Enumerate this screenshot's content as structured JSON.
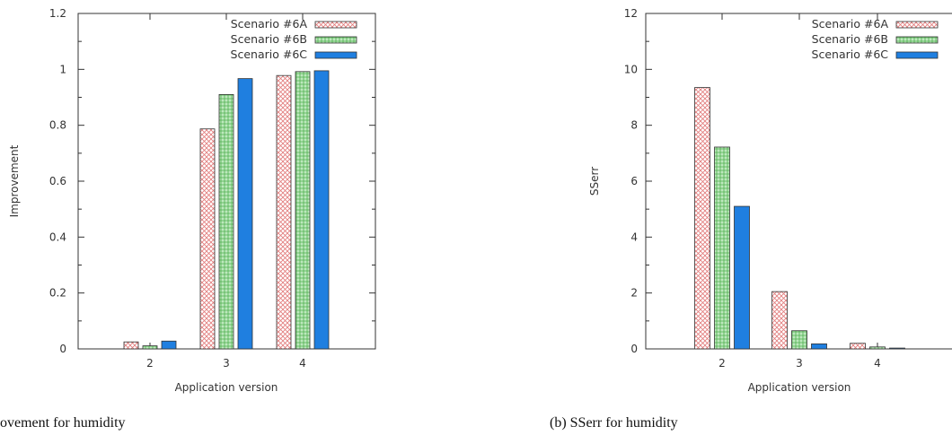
{
  "chart_data": [
    {
      "type": "bar",
      "categories": [
        "2",
        "3",
        "4"
      ],
      "series": [
        {
          "name": "Scenario #6A",
          "values": [
            0.025,
            0.787,
            0.978
          ]
        },
        {
          "name": "Scenario #6B",
          "values": [
            0.011,
            0.91,
            0.992
          ]
        },
        {
          "name": "Scenario #6C",
          "values": [
            0.028,
            0.967,
            0.995
          ]
        }
      ],
      "xlabel": "Application version",
      "ylabel": "Improvement",
      "ylim": [
        0,
        1.2
      ],
      "yticks": [
        "0",
        "0.2",
        "0.4",
        "0.6",
        "0.8",
        "1",
        "1.2"
      ],
      "legend_position": "top-right",
      "grid": false,
      "caption": "ovement for humidity"
    },
    {
      "type": "bar",
      "categories": [
        "2",
        "3",
        "4"
      ],
      "series": [
        {
          "name": "Scenario #6A",
          "values": [
            9.35,
            2.05,
            0.2
          ]
        },
        {
          "name": "Scenario #6B",
          "values": [
            7.22,
            0.65,
            0.07
          ]
        },
        {
          "name": "Scenario #6C",
          "values": [
            5.1,
            0.18,
            0.03
          ]
        }
      ],
      "xlabel": "Application version",
      "ylabel": "SSerr",
      "ylim": [
        0,
        12
      ],
      "yticks": [
        "0",
        "2",
        "4",
        "6",
        "8",
        "10",
        "12"
      ],
      "legend_position": "top-right",
      "grid": false,
      "caption": "(b)    SSerr for humidity"
    }
  ],
  "colors": {
    "scenario_6a": "#e8a0a0",
    "scenario_6b": "#88d488",
    "scenario_6c": "#1f7fe0",
    "axis": "#333333"
  }
}
